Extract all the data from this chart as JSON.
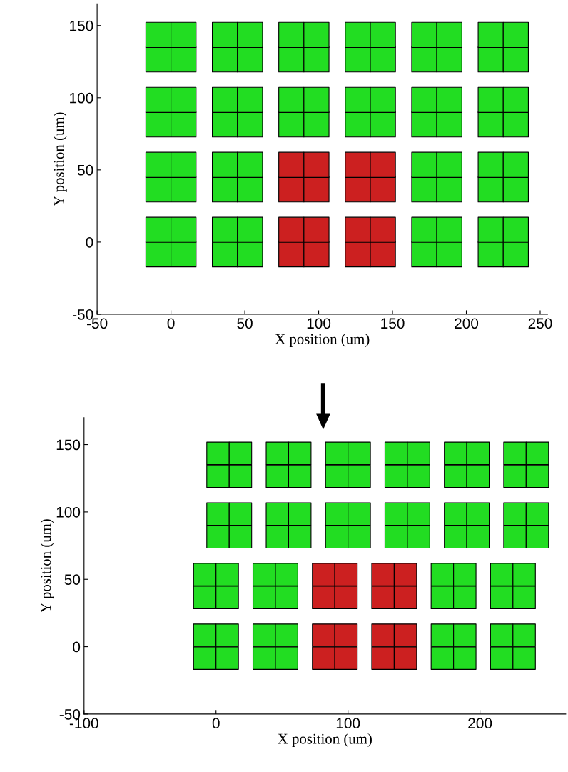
{
  "chart_data": [
    {
      "type": "scatter",
      "xlabel": "X position (um)",
      "ylabel": "Y position (um)",
      "xlim": [
        -50,
        255
      ],
      "ylim": [
        -50,
        165
      ],
      "xticks": [
        -50,
        0,
        50,
        100,
        150,
        200,
        250
      ],
      "yticks": [
        -50,
        0,
        50,
        100,
        150
      ],
      "marker": "square",
      "series": [
        {
          "color": "#22dd22",
          "x": [
            -8.5,
            8.5,
            -8.5,
            8.5,
            36.5,
            53.5,
            36.5,
            53.5,
            171.5,
            188.5,
            171.5,
            188.5,
            216.5,
            233.5,
            216.5,
            233.5,
            -8.5,
            8.5,
            -8.5,
            8.5,
            36.5,
            53.5,
            36.5,
            53.5,
            171.5,
            188.5,
            171.5,
            188.5,
            216.5,
            233.5,
            216.5,
            233.5,
            -8.5,
            8.5,
            -8.5,
            8.5,
            36.5,
            53.5,
            36.5,
            53.5,
            81.5,
            98.5,
            81.5,
            98.5,
            126.5,
            143.5,
            126.5,
            143.5,
            171.5,
            188.5,
            171.5,
            188.5,
            216.5,
            233.5,
            216.5,
            233.5,
            -8.5,
            8.5,
            -8.5,
            8.5,
            36.5,
            53.5,
            36.5,
            53.5,
            81.5,
            98.5,
            81.5,
            98.5,
            126.5,
            143.5,
            126.5,
            143.5,
            171.5,
            188.5,
            171.5,
            188.5,
            216.5,
            233.5,
            216.5,
            233.5
          ],
          "values": [
            -8.5,
            -8.5,
            8.5,
            8.5,
            -8.5,
            -8.5,
            8.5,
            8.5,
            -8.5,
            -8.5,
            8.5,
            8.5,
            -8.5,
            -8.5,
            8.5,
            8.5,
            36.5,
            36.5,
            53.5,
            53.5,
            36.5,
            36.5,
            53.5,
            53.5,
            36.5,
            36.5,
            53.5,
            53.5,
            36.5,
            36.5,
            53.5,
            53.5,
            81.5,
            81.5,
            98.5,
            98.5,
            81.5,
            81.5,
            98.5,
            98.5,
            81.5,
            81.5,
            98.5,
            98.5,
            81.5,
            81.5,
            98.5,
            98.5,
            81.5,
            81.5,
            98.5,
            98.5,
            81.5,
            81.5,
            98.5,
            98.5,
            126.5,
            126.5,
            143.5,
            143.5,
            126.5,
            126.5,
            143.5,
            143.5,
            126.5,
            126.5,
            143.5,
            143.5,
            126.5,
            126.5,
            143.5,
            143.5,
            126.5,
            126.5,
            143.5,
            143.5,
            126.5,
            126.5,
            143.5,
            143.5
          ]
        },
        {
          "color": "#cc2020",
          "x": [
            81.5,
            98.5,
            81.5,
            98.5,
            126.5,
            143.5,
            126.5,
            143.5,
            81.5,
            98.5,
            81.5,
            98.5,
            126.5,
            143.5,
            126.5,
            143.5
          ],
          "values": [
            -8.5,
            -8.5,
            8.5,
            8.5,
            -8.5,
            -8.5,
            8.5,
            8.5,
            36.5,
            36.5,
            53.5,
            53.5,
            36.5,
            36.5,
            53.5,
            53.5
          ]
        }
      ]
    },
    {
      "type": "scatter",
      "xlabel": "X position (um)",
      "ylabel": "Y position (um)",
      "xlim": [
        -100,
        265
      ],
      "ylim": [
        -50,
        170
      ],
      "xticks": [
        -100,
        0,
        100,
        200
      ],
      "yticks": [
        -50,
        0,
        50,
        100,
        150
      ],
      "marker": "square",
      "series": [
        {
          "color": "#22dd22",
          "x": [
            -8.5,
            8.5,
            -8.5,
            8.5,
            36.5,
            53.5,
            36.5,
            53.5,
            171.5,
            188.5,
            171.5,
            188.5,
            216.5,
            233.5,
            216.5,
            233.5,
            -8.5,
            8.5,
            -8.5,
            8.5,
            36.5,
            53.5,
            36.5,
            53.5,
            171.5,
            188.5,
            171.5,
            188.5,
            216.5,
            233.5,
            216.5,
            233.5,
            1.5,
            18.5,
            1.5,
            18.5,
            46.5,
            63.5,
            46.5,
            63.5,
            91.5,
            108.5,
            91.5,
            108.5,
            136.5,
            153.5,
            136.5,
            153.5,
            181.5,
            198.5,
            181.5,
            198.5,
            226.5,
            243.5,
            226.5,
            243.5,
            1.5,
            18.5,
            1.5,
            18.5,
            46.5,
            63.5,
            46.5,
            63.5,
            91.5,
            108.5,
            91.5,
            108.5,
            136.5,
            153.5,
            136.5,
            153.5,
            181.5,
            198.5,
            181.5,
            198.5,
            226.5,
            243.5,
            226.5,
            243.5
          ],
          "values": [
            -8.5,
            -8.5,
            8.5,
            8.5,
            -8.5,
            -8.5,
            8.5,
            8.5,
            -8.5,
            -8.5,
            8.5,
            8.5,
            -8.5,
            -8.5,
            8.5,
            8.5,
            36.5,
            36.5,
            53.5,
            53.5,
            36.5,
            36.5,
            53.5,
            53.5,
            36.5,
            36.5,
            53.5,
            53.5,
            36.5,
            36.5,
            53.5,
            53.5,
            81.5,
            81.5,
            98.5,
            98.5,
            81.5,
            81.5,
            98.5,
            98.5,
            81.5,
            81.5,
            98.5,
            98.5,
            81.5,
            81.5,
            98.5,
            98.5,
            81.5,
            81.5,
            98.5,
            98.5,
            81.5,
            81.5,
            98.5,
            98.5,
            126.5,
            126.5,
            143.5,
            143.5,
            126.5,
            126.5,
            143.5,
            143.5,
            126.5,
            126.5,
            143.5,
            143.5,
            126.5,
            126.5,
            143.5,
            143.5,
            126.5,
            126.5,
            143.5,
            143.5,
            126.5,
            126.5,
            143.5,
            143.5
          ]
        },
        {
          "color": "#cc2020",
          "x": [
            81.5,
            98.5,
            81.5,
            98.5,
            126.5,
            143.5,
            126.5,
            143.5,
            81.5,
            98.5,
            81.5,
            98.5,
            126.5,
            143.5,
            126.5,
            143.5
          ],
          "values": [
            -8.5,
            -8.5,
            8.5,
            8.5,
            -8.5,
            -8.5,
            8.5,
            8.5,
            36.5,
            36.5,
            53.5,
            53.5,
            36.5,
            36.5,
            53.5,
            53.5
          ]
        }
      ]
    }
  ]
}
